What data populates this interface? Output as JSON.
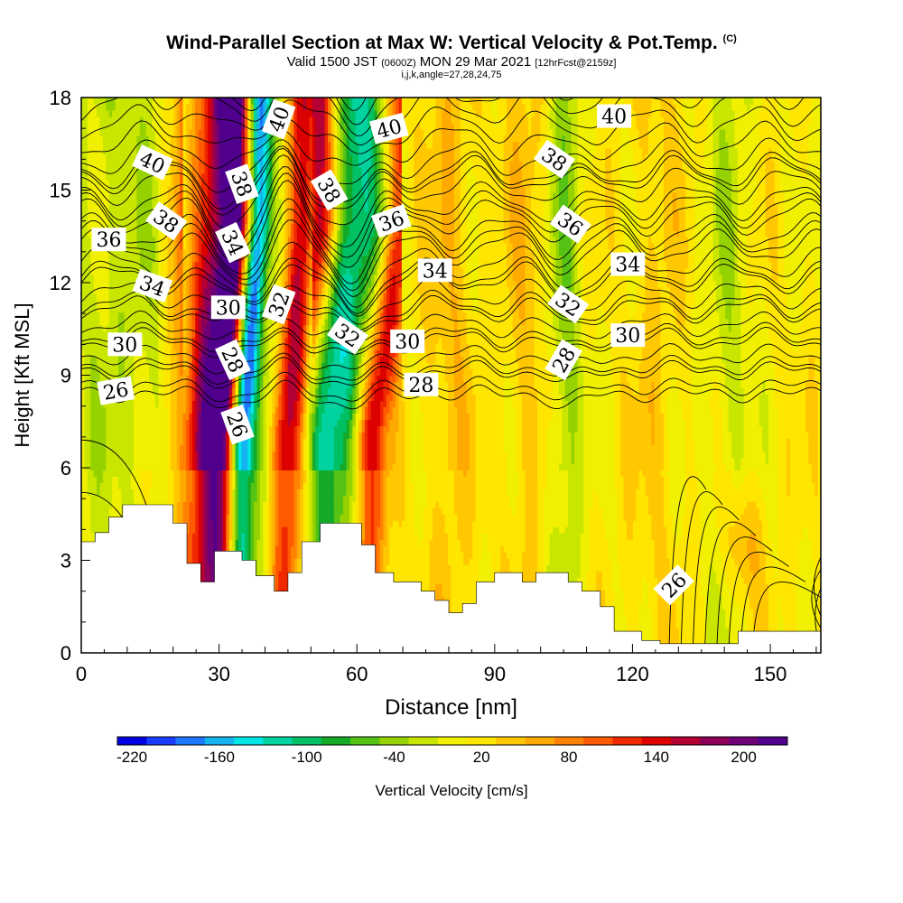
{
  "title": {
    "main": "Wind-Parallel Section at Max W: Vertical Velocity & Pot.Temp.",
    "copyright": "(C)",
    "valid": "Valid 1500 JST",
    "utc": "(0600Z)",
    "date": "MON 29 Mar 2021",
    "fcst": "[12hrFcst@2159z]",
    "indices": "i,j,k,angle=27,28,24,75"
  },
  "chart_data": {
    "type": "heatmap",
    "xlabel": "Distance [nm]",
    "ylabel": "Height [Kft MSL]",
    "xlim": [
      0,
      161
    ],
    "ylim": [
      0,
      18
    ],
    "x_ticks": [
      0,
      30,
      60,
      90,
      120,
      150
    ],
    "y_ticks": [
      0,
      3,
      6,
      9,
      12,
      15,
      18
    ],
    "colorbar": {
      "label": "Vertical Velocity [cm/s]",
      "min": -230,
      "max": 230,
      "step": 20,
      "tick_labels": [
        "-220",
        "-160",
        "-100",
        "-40",
        "20",
        "80",
        "140",
        "200"
      ],
      "colors": [
        "#0000e0",
        "#1a3cff",
        "#1e78ff",
        "#14b4f0",
        "#00e6e6",
        "#00d2a0",
        "#00c064",
        "#14aa28",
        "#55c214",
        "#96d200",
        "#c8e600",
        "#f0f000",
        "#ffe600",
        "#ffc800",
        "#ffaa00",
        "#ff8200",
        "#ff5a00",
        "#f02800",
        "#dc0000",
        "#b40032",
        "#8c005a",
        "#6e0078",
        "#50008c"
      ]
    },
    "vertical_velocity_bands": [
      {
        "x": 27,
        "w": 5.5,
        "v": 190
      },
      {
        "x": 35,
        "w": 2.5,
        "v": -215
      },
      {
        "x": 30,
        "w": 2.5,
        "v": 120
      },
      {
        "x": 40,
        "w": 2.8,
        "v": -45
      },
      {
        "x": 45,
        "w": 4.0,
        "v": 175
      },
      {
        "x": 53,
        "w": 6.5,
        "v": -140
      },
      {
        "x": 63,
        "w": 3.5,
        "v": 135
      },
      {
        "x": 14,
        "w": 7.0,
        "v": -30
      },
      {
        "x": 4,
        "w": 7.0,
        "v": -30
      },
      {
        "x": 105,
        "w": 4.0,
        "v": -55
      },
      {
        "x": 97,
        "w": 5.0,
        "v": 25
      },
      {
        "x": 80,
        "w": 5.0,
        "v": 30
      },
      {
        "x": 141,
        "w": 5.0,
        "v": -35
      },
      {
        "x": 125,
        "w": 5.0,
        "v": 20
      }
    ],
    "potential_temperature_contours": [
      {
        "level": 26,
        "base": 8.4
      },
      {
        "level": 28,
        "base": 9.3
      },
      {
        "level": 30,
        "base": 10.3
      },
      {
        "level": 32,
        "base": 11.3
      },
      {
        "level": 34,
        "base": 12.3
      },
      {
        "level": 36,
        "base": 13.4
      },
      {
        "level": 38,
        "base": 14.4
      },
      {
        "level": 40,
        "base": 15.5
      }
    ],
    "contour_labels": [
      {
        "text": "40",
        "x": 15.5,
        "y": 15.9,
        "angle": 25
      },
      {
        "text": "38",
        "x": 18.5,
        "y": 14.0,
        "angle": 35
      },
      {
        "text": "36",
        "x": 6.0,
        "y": 13.4,
        "angle": 0
      },
      {
        "text": "34",
        "x": 15.5,
        "y": 11.9,
        "angle": 20
      },
      {
        "text": "30",
        "x": 9.5,
        "y": 10.0,
        "angle": 0
      },
      {
        "text": "26",
        "x": 7.5,
        "y": 8.5,
        "angle": -10
      },
      {
        "text": "38",
        "x": 35.0,
        "y": 15.2,
        "angle": 70
      },
      {
        "text": "34",
        "x": 33.0,
        "y": 13.3,
        "angle": 65
      },
      {
        "text": "30",
        "x": 32.0,
        "y": 11.2,
        "angle": 0
      },
      {
        "text": "28",
        "x": 33.0,
        "y": 9.5,
        "angle": 65
      },
      {
        "text": "26",
        "x": 34.0,
        "y": 7.4,
        "angle": 70
      },
      {
        "text": "40",
        "x": 43.0,
        "y": 17.3,
        "angle": -70
      },
      {
        "text": "32",
        "x": 43.0,
        "y": 11.3,
        "angle": -70
      },
      {
        "text": "38",
        "x": 54.0,
        "y": 15.0,
        "angle": 60
      },
      {
        "text": "32",
        "x": 58.0,
        "y": 10.3,
        "angle": 35
      },
      {
        "text": "40",
        "x": 67.0,
        "y": 17.0,
        "angle": -15
      },
      {
        "text": "36",
        "x": 67.5,
        "y": 14.0,
        "angle": -20
      },
      {
        "text": "34",
        "x": 77.0,
        "y": 12.4,
        "angle": 0
      },
      {
        "text": "30",
        "x": 71.0,
        "y": 10.1,
        "angle": 0
      },
      {
        "text": "28",
        "x": 74.0,
        "y": 8.7,
        "angle": 0
      },
      {
        "text": "40",
        "x": 116.0,
        "y": 17.4,
        "angle": 0
      },
      {
        "text": "38",
        "x": 103.0,
        "y": 16.0,
        "angle": 35
      },
      {
        "text": "36",
        "x": 106.5,
        "y": 13.9,
        "angle": 35
      },
      {
        "text": "34",
        "x": 119.0,
        "y": 12.6,
        "angle": 0
      },
      {
        "text": "32",
        "x": 106.0,
        "y": 11.3,
        "angle": 35
      },
      {
        "text": "30",
        "x": 119.0,
        "y": 10.3,
        "angle": 0
      },
      {
        "text": "28",
        "x": 105.0,
        "y": 9.5,
        "angle": -60
      },
      {
        "text": "26",
        "x": 129.0,
        "y": 2.2,
        "angle": -45
      }
    ],
    "terrain_profile": [
      [
        0,
        3.6
      ],
      [
        3,
        3.9
      ],
      [
        6,
        4.4
      ],
      [
        9,
        4.8
      ],
      [
        20,
        4.2
      ],
      [
        23,
        2.9
      ],
      [
        26,
        2.3
      ],
      [
        29,
        3.3
      ],
      [
        35,
        3.0
      ],
      [
        38,
        2.5
      ],
      [
        42,
        2.0
      ],
      [
        45,
        2.6
      ],
      [
        48,
        3.6
      ],
      [
        52,
        4.2
      ],
      [
        61,
        3.5
      ],
      [
        64,
        2.6
      ],
      [
        68,
        2.3
      ],
      [
        74,
        2.0
      ],
      [
        77,
        1.7
      ],
      [
        80,
        1.3
      ],
      [
        83,
        1.6
      ],
      [
        86,
        2.3
      ],
      [
        90,
        2.6
      ],
      [
        96,
        2.3
      ],
      [
        99,
        2.6
      ],
      [
        106,
        2.3
      ],
      [
        109,
        2.0
      ],
      [
        113,
        1.5
      ],
      [
        116,
        0.7
      ],
      [
        122,
        0.4
      ],
      [
        126,
        0.3
      ],
      [
        143,
        0.7
      ],
      [
        161,
        0.7
      ]
    ]
  }
}
